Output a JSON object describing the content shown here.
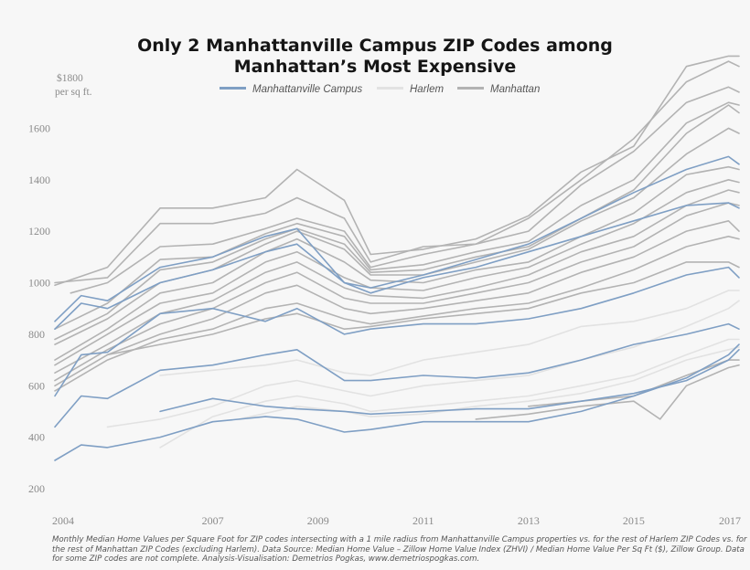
{
  "chart_data": {
    "type": "line",
    "title_lines": [
      "Only 2 Manhattanville Campus ZIP Codes among",
      "Manhattan’s Most Expensive"
    ],
    "ylabel_lines": [
      "$1800",
      "per sq ft."
    ],
    "xlim": [
      2004,
      2017
    ],
    "ylim": [
      200,
      1800
    ],
    "x_ticks": [
      2004,
      2007,
      2009,
      2011,
      2013,
      2015,
      2017
    ],
    "y_ticks": [
      200,
      400,
      600,
      800,
      1000,
      1200,
      1400,
      1600
    ],
    "grid": false,
    "legend_position": "top-center",
    "legend": [
      {
        "label": "Manhattanville Campus",
        "color": "#7f9fc4"
      },
      {
        "label": "Harlem",
        "color": "#e2e2e2"
      },
      {
        "label": "Manhattan",
        "color": "#b3b3b3"
      }
    ],
    "series": [
      {
        "group": "Manhattan",
        "x": [
          2004.0,
          2005.0,
          2006.0,
          2007.0,
          2008.0,
          2008.6,
          2009.5,
          2010.0,
          2011.0,
          2012.0,
          2013.0,
          2014.0,
          2015.0,
          2016.0,
          2016.8,
          2017.0
        ],
        "values": [
          990,
          1060,
          1290,
          1290,
          1330,
          1440,
          1320,
          1110,
          1130,
          1170,
          1260,
          1430,
          1530,
          1840,
          1880,
          1880
        ]
      },
      {
        "group": "Manhattan",
        "x": [
          2004.0,
          2005.0,
          2006.0,
          2007.0,
          2008.0,
          2008.6,
          2009.5,
          2010.0,
          2011.0,
          2012.0,
          2013.0,
          2014.0,
          2015.0,
          2016.0,
          2016.8,
          2017.0
        ],
        "values": [
          1000,
          1020,
          1230,
          1230,
          1270,
          1330,
          1250,
          1080,
          1140,
          1150,
          1250,
          1400,
          1560,
          1780,
          1860,
          1840
        ]
      },
      {
        "group": "Manhattan",
        "x": [
          2004.3,
          2005.0,
          2006.0,
          2007.0,
          2008.0,
          2008.6,
          2009.5,
          2010.0,
          2011.0,
          2012.0,
          2013.0,
          2014.0,
          2015.0,
          2016.0,
          2016.8,
          2017.0
        ],
        "values": [
          960,
          1000,
          1140,
          1150,
          1210,
          1250,
          1200,
          1060,
          1110,
          1150,
          1200,
          1380,
          1510,
          1700,
          1760,
          1740
        ]
      },
      {
        "group": "Manhattan",
        "x": [
          2004.0,
          2005.0,
          2006.0,
          2007.0,
          2008.0,
          2008.6,
          2009.5,
          2010.0,
          2011.0,
          2012.0,
          2013.0,
          2014.0,
          2015.0,
          2016.0,
          2016.8,
          2017.0
        ],
        "values": [
          820,
          920,
          1090,
          1100,
          1190,
          1230,
          1180,
          1050,
          1070,
          1120,
          1160,
          1300,
          1400,
          1620,
          1700,
          1690
        ]
      },
      {
        "group": "Manhattan",
        "x": [
          2004.0,
          2005.0,
          2006.0,
          2007.0,
          2008.0,
          2008.6,
          2009.5,
          2010.0,
          2011.0,
          2012.0,
          2013.0,
          2014.0,
          2015.0,
          2016.0,
          2016.8,
          2017.0
        ],
        "values": [
          780,
          880,
          1050,
          1080,
          1170,
          1210,
          1150,
          1040,
          1050,
          1100,
          1140,
          1250,
          1360,
          1580,
          1690,
          1660
        ]
      },
      {
        "group": "Manhattan",
        "x": [
          2004.0,
          2005.0,
          2006.0,
          2007.0,
          2008.0,
          2008.6,
          2009.5,
          2010.0,
          2011.0,
          2012.0,
          2013.0,
          2014.0,
          2015.0,
          2016.0,
          2016.8,
          2017.0
        ],
        "values": [
          760,
          860,
          1000,
          1050,
          1150,
          1200,
          1130,
          1030,
          1030,
          1080,
          1130,
          1240,
          1330,
          1500,
          1600,
          1580
        ]
      },
      {
        "group": "Manhattan",
        "x": [
          2004.0,
          2005.0,
          2006.0,
          2007.0,
          2008.0,
          2008.6,
          2009.5,
          2010.0,
          2011.0,
          2012.0,
          2013.0,
          2014.0,
          2015.0,
          2016.0,
          2016.8,
          2017.0
        ],
        "values": [
          700,
          820,
          960,
          1000,
          1120,
          1170,
          1080,
          1010,
          1000,
          1050,
          1080,
          1180,
          1270,
          1420,
          1450,
          1440
        ]
      },
      {
        "group": "Manhattan",
        "x": [
          2004.0,
          2005.0,
          2006.0,
          2007.0,
          2008.0,
          2008.6,
          2009.5,
          2010.0,
          2011.0,
          2012.0,
          2013.0,
          2014.0,
          2015.0,
          2016.0,
          2016.8,
          2017.0
        ],
        "values": [
          680,
          800,
          920,
          960,
          1080,
          1120,
          1020,
          980,
          970,
          1020,
          1060,
          1150,
          1230,
          1350,
          1400,
          1390
        ]
      },
      {
        "group": "Manhattan",
        "x": [
          2004.0,
          2005.0,
          2006.0,
          2007.0,
          2008.0,
          2008.6,
          2009.5,
          2010.0,
          2011.0,
          2012.0,
          2013.0,
          2014.0,
          2015.0,
          2016.0,
          2016.8,
          2017.0
        ],
        "values": [
          650,
          760,
          880,
          930,
          1040,
          1080,
          980,
          950,
          940,
          980,
          1030,
          1120,
          1180,
          1300,
          1360,
          1350
        ]
      },
      {
        "group": "Manhattan",
        "x": [
          2004.0,
          2005.0,
          2006.0,
          2007.0,
          2008.0,
          2008.6,
          2009.5,
          2010.0,
          2011.0,
          2012.0,
          2013.0,
          2014.0,
          2015.0,
          2016.0,
          2016.8,
          2017.0
        ],
        "values": [
          620,
          740,
          840,
          900,
          1000,
          1040,
          940,
          920,
          920,
          960,
          1000,
          1080,
          1140,
          1260,
          1310,
          1300
        ]
      },
      {
        "group": "Manhattan",
        "x": [
          2004.0,
          2005.0,
          2006.0,
          2007.0,
          2008.0,
          2008.6,
          2009.5,
          2010.0,
          2011.0,
          2012.0,
          2013.0,
          2014.0,
          2015.0,
          2016.0,
          2016.8,
          2017.0
        ],
        "values": [
          600,
          720,
          800,
          860,
          960,
          990,
          900,
          880,
          900,
          930,
          960,
          1040,
          1100,
          1200,
          1240,
          1200
        ]
      },
      {
        "group": "Manhattan",
        "x": [
          2004.0,
          2005.0,
          2006.0,
          2007.0,
          2008.0,
          2008.6,
          2009.5,
          2010.0,
          2011.0,
          2012.0,
          2013.0,
          2014.0,
          2015.0,
          2016.0,
          2016.8,
          2017.0
        ],
        "values": [
          580,
          700,
          780,
          820,
          900,
          920,
          860,
          840,
          870,
          900,
          920,
          980,
          1050,
          1140,
          1180,
          1170
        ]
      },
      {
        "group": "Manhattan",
        "x": [
          2005.0,
          2006.0,
          2007.0,
          2008.0,
          2008.6,
          2009.5,
          2010.0,
          2011.0,
          2012.0,
          2013.0,
          2014.0,
          2015.0,
          2016.0,
          2016.8,
          2017.0
        ],
        "values": [
          720,
          760,
          800,
          860,
          880,
          820,
          830,
          860,
          880,
          900,
          960,
          1000,
          1080,
          1080,
          1060
        ]
      },
      {
        "group": "Manhattan",
        "x": [
          2012.0,
          2013.0,
          2014.0,
          2015.0,
          2015.5,
          2016.0,
          2016.8,
          2017.0
        ],
        "values": [
          470,
          490,
          520,
          540,
          470,
          600,
          670,
          680
        ]
      },
      {
        "group": "Manhattan",
        "x": [
          2013.0,
          2014.0,
          2015.0,
          2016.0,
          2016.8,
          2017.0
        ],
        "values": [
          520,
          540,
          560,
          640,
          700,
          700
        ]
      },
      {
        "group": "Harlem",
        "x": [
          2006.0,
          2007.0,
          2008.0,
          2008.6,
          2009.5,
          2010.0,
          2011.0,
          2012.0,
          2013.0,
          2014.0,
          2015.0,
          2016.0,
          2016.8,
          2017.0
        ],
        "values": [
          640,
          660,
          680,
          700,
          650,
          640,
          700,
          730,
          760,
          830,
          850,
          900,
          970,
          970
        ]
      },
      {
        "group": "Harlem",
        "x": [
          2005.0,
          2006.0,
          2007.0,
          2008.0,
          2008.6,
          2009.5,
          2010.0,
          2011.0,
          2012.0,
          2013.0,
          2014.0,
          2015.0,
          2016.0,
          2016.8,
          2017.0
        ],
        "values": [
          440,
          470,
          520,
          600,
          620,
          580,
          560,
          600,
          620,
          640,
          700,
          750,
          830,
          900,
          930
        ]
      },
      {
        "group": "Harlem",
        "x": [
          2006.0,
          2007.0,
          2008.0,
          2008.6,
          2009.5,
          2010.0,
          2011.0,
          2012.0,
          2013.0,
          2014.0,
          2015.0,
          2016.0,
          2016.8,
          2017.0
        ],
        "values": [
          360,
          480,
          540,
          560,
          530,
          500,
          520,
          540,
          560,
          600,
          640,
          720,
          780,
          780
        ]
      },
      {
        "group": "Harlem",
        "x": [
          2007.5,
          2008.6,
          2009.5,
          2010.0,
          2011.0,
          2012.0,
          2013.0,
          2014.0,
          2015.0,
          2016.0,
          2016.8,
          2017.0
        ],
        "values": [
          470,
          520,
          500,
          480,
          490,
          520,
          540,
          570,
          620,
          700,
          740,
          750
        ]
      },
      {
        "group": "Manhattanville Campus",
        "x": [
          2004.0,
          2004.5,
          2005.0,
          2006.0,
          2007.0,
          2008.0,
          2008.6,
          2009.5,
          2010.0,
          2011.0,
          2012.0,
          2013.0,
          2014.0,
          2015.0,
          2016.0,
          2016.8,
          2017.0
        ],
        "values": [
          850,
          950,
          930,
          1060,
          1100,
          1180,
          1210,
          1000,
          980,
          1030,
          1090,
          1150,
          1250,
          1350,
          1440,
          1490,
          1460
        ]
      },
      {
        "group": "Manhattanville Campus",
        "x": [
          2004.0,
          2004.5,
          2005.0,
          2006.0,
          2007.0,
          2008.0,
          2008.6,
          2009.5,
          2010.0,
          2011.0,
          2012.0,
          2013.0,
          2014.0,
          2015.0,
          2016.0,
          2016.8,
          2017.0
        ],
        "values": [
          820,
          920,
          900,
          1000,
          1050,
          1120,
          1150,
          1000,
          960,
          1020,
          1060,
          1120,
          1180,
          1240,
          1300,
          1310,
          1290
        ]
      },
      {
        "group": "Manhattanville Campus",
        "x": [
          2004.0,
          2004.5,
          2005.0,
          2006.0,
          2007.0,
          2008.0,
          2008.6,
          2009.5,
          2010.0,
          2011.0,
          2012.0,
          2013.0,
          2014.0,
          2015.0,
          2016.0,
          2016.8,
          2017.0
        ],
        "values": [
          560,
          720,
          730,
          880,
          900,
          850,
          900,
          800,
          820,
          840,
          840,
          860,
          900,
          960,
          1030,
          1060,
          1020
        ]
      },
      {
        "group": "Manhattanville Campus",
        "x": [
          2004.0,
          2004.5,
          2005.0,
          2006.0,
          2007.0,
          2008.0,
          2008.6,
          2009.5,
          2010.0,
          2011.0,
          2012.0,
          2013.0,
          2014.0,
          2015.0,
          2016.0,
          2016.8,
          2017.0
        ],
        "values": [
          440,
          560,
          550,
          660,
          680,
          720,
          740,
          620,
          620,
          640,
          630,
          650,
          700,
          760,
          800,
          840,
          820
        ]
      },
      {
        "group": "Manhattanville Campus",
        "x": [
          2006.0,
          2007.0,
          2008.0,
          2008.6,
          2009.5,
          2010.0,
          2011.0,
          2012.0,
          2013.0,
          2014.0,
          2015.0,
          2016.0,
          2016.8,
          2017.0
        ],
        "values": [
          500,
          550,
          520,
          510,
          500,
          490,
          500,
          510,
          510,
          540,
          570,
          620,
          700,
          740
        ]
      },
      {
        "group": "Manhattanville Campus",
        "x": [
          2004.0,
          2004.5,
          2005.0,
          2006.0,
          2007.0,
          2008.0,
          2008.6,
          2009.5,
          2010.0,
          2011.0,
          2012.0,
          2013.0,
          2014.0,
          2015.0,
          2016.0,
          2016.8,
          2017.0
        ],
        "values": [
          310,
          370,
          360,
          400,
          460,
          480,
          470,
          420,
          430,
          460,
          460,
          460,
          500,
          560,
          630,
          720,
          760
        ]
      }
    ]
  },
  "footnote": "Monthly Median Home Values per Square Foot for ZIP codes intersecting with a 1 mile radius from Manhattanville Campus properties vs. for the rest of Harlem ZIP Codes vs. for the rest of Manhattan ZIP Codes (excluding Harlem). Data Source: Median Home Value – Zillow Home Value Index (ZHVI) / Median Home Value Per Sq Ft ($), Zillow Group. Data for some ZIP codes are not complete. Analysis-Visualisation: Demetrios Pogkas, www.demetriospogkas.com."
}
